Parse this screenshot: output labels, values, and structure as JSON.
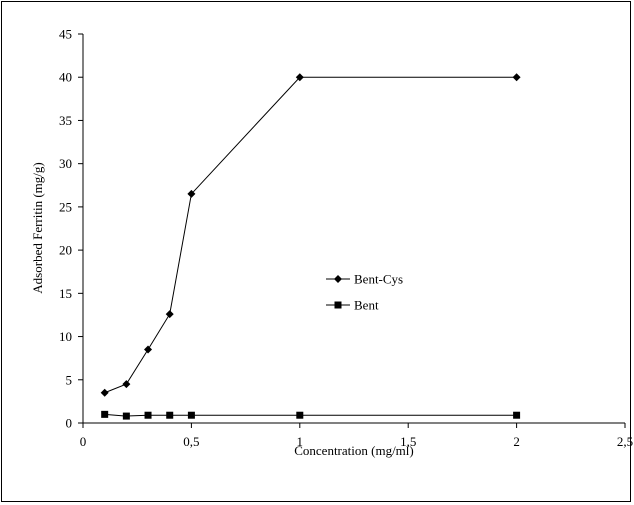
{
  "chart_data": {
    "type": "line",
    "xlabel": "Concentration (mg/ml)",
    "ylabel": "Adsorbed Ferritin (mg/g)",
    "xlim": [
      0,
      2.5
    ],
    "ylim": [
      0,
      45
    ],
    "x_ticks": [
      "0",
      "0,5",
      "1",
      "1,5",
      "2",
      "2,5"
    ],
    "y_ticks": [
      "0",
      "5",
      "10",
      "15",
      "20",
      "25",
      "30",
      "35",
      "40",
      "45"
    ],
    "grid": false,
    "legend_position": "center-right",
    "series": [
      {
        "name": "Bent-Cys",
        "marker": "diamond",
        "color": "#000000",
        "x": [
          0.1,
          0.2,
          0.3,
          0.4,
          0.5,
          1,
          2
        ],
        "y": [
          3.5,
          4.5,
          8.5,
          12.6,
          26.5,
          40,
          40
        ]
      },
      {
        "name": "Bent",
        "marker": "square",
        "color": "#000000",
        "x": [
          0.1,
          0.2,
          0.3,
          0.4,
          0.5,
          1,
          2
        ],
        "y": [
          1.0,
          0.8,
          0.9,
          0.9,
          0.9,
          0.9,
          0.9
        ]
      }
    ]
  }
}
